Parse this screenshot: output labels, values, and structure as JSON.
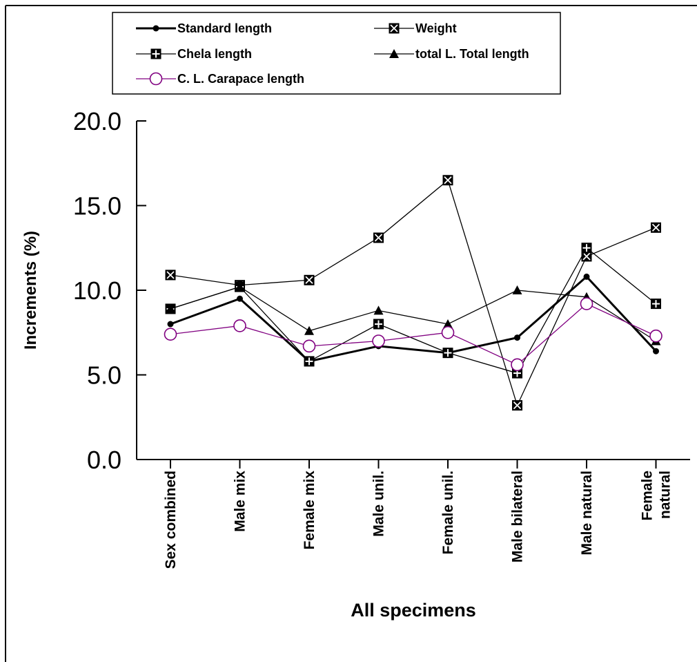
{
  "chart_data": {
    "type": "line",
    "xlabel": "All specimens",
    "ylabel": "Increments (%)",
    "ylim": [
      0,
      20
    ],
    "yticks": [
      "0.0",
      "5.0",
      "10.0",
      "15.0",
      "20.0"
    ],
    "categories": [
      [
        "Sex combined"
      ],
      [
        "Male mix"
      ],
      [
        "Female mix"
      ],
      [
        "Male unil."
      ],
      [
        "Female unil."
      ],
      [
        "Male bilateral"
      ],
      [
        "Male natural"
      ],
      [
        "Female",
        "natural"
      ]
    ],
    "grid": false,
    "legend_position": "top",
    "series": [
      {
        "name": "Standard length",
        "marker": "dot",
        "color": "#000000",
        "line_weight": "bold",
        "values": [
          8.0,
          9.5,
          5.8,
          6.7,
          6.3,
          7.2,
          10.8,
          6.4
        ]
      },
      {
        "name": "Weight",
        "marker": "box-x",
        "color": "#000000",
        "line_weight": "thin",
        "values": [
          10.9,
          10.3,
          10.6,
          13.1,
          16.5,
          3.2,
          12.0,
          13.7
        ]
      },
      {
        "name": "Chela length",
        "marker": "box-plus",
        "color": "#000000",
        "line_weight": "thin",
        "values": [
          8.9,
          10.2,
          5.8,
          8.0,
          6.3,
          5.1,
          12.5,
          9.2
        ]
      },
      {
        "name": "total L. Total length",
        "marker": "triangle",
        "color": "#000000",
        "line_weight": "thin",
        "values": [
          8.9,
          10.2,
          7.6,
          8.8,
          8.0,
          10.0,
          9.6,
          7.0
        ]
      },
      {
        "name": "C. L. Carapace length",
        "marker": "circle-open",
        "color": "#800080",
        "line_weight": "thin",
        "values": [
          7.4,
          7.9,
          6.7,
          7.0,
          7.5,
          5.6,
          9.2,
          7.3
        ]
      }
    ]
  }
}
